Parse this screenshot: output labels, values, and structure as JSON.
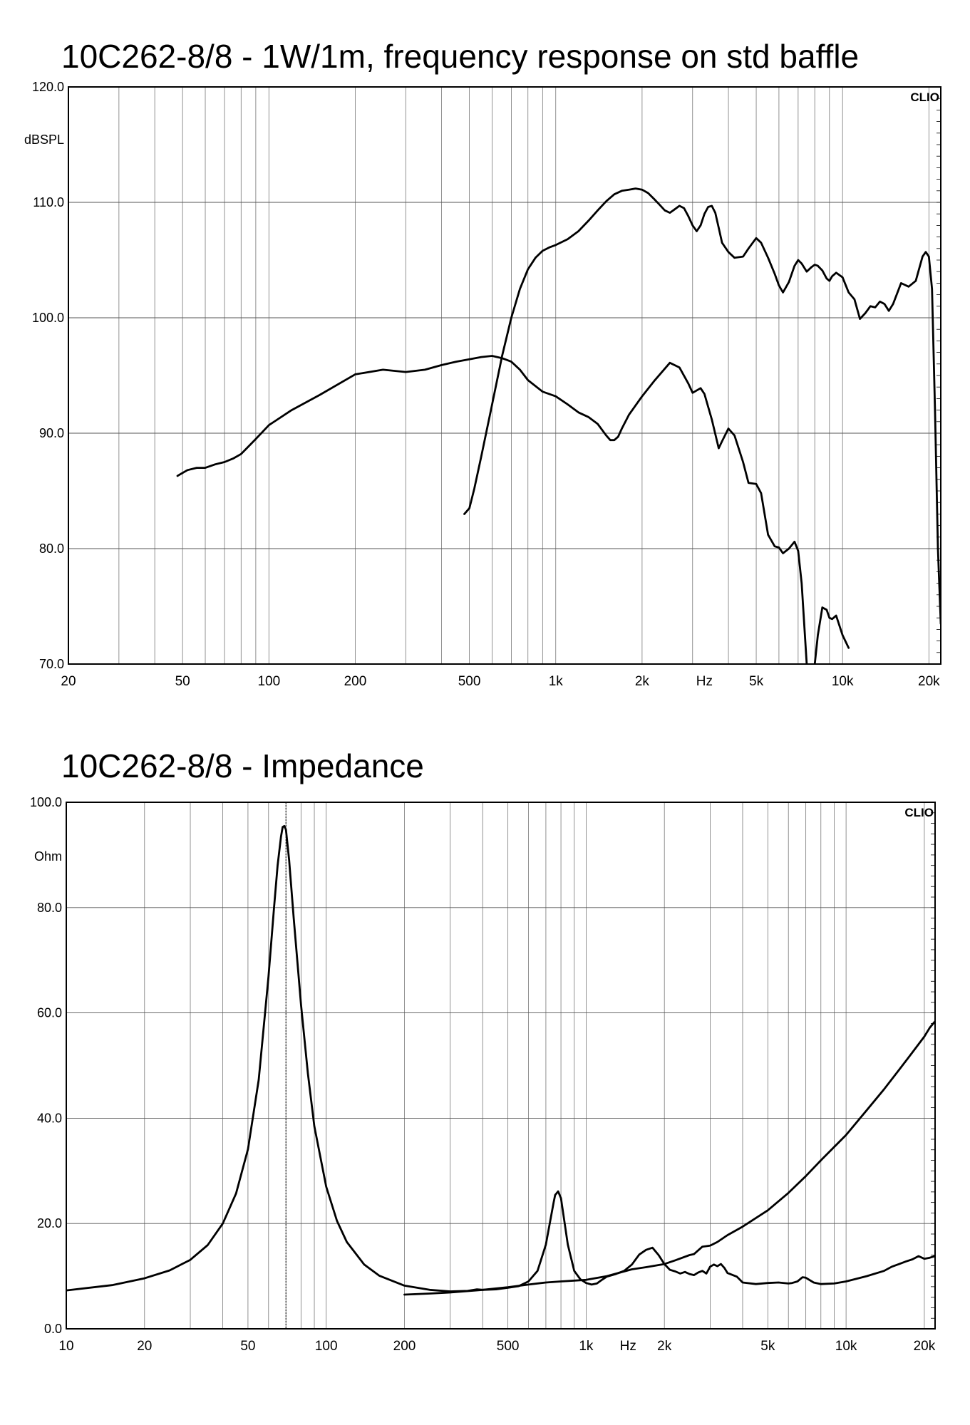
{
  "chart_data": [
    {
      "type": "line",
      "title": "10C262-8/8 - 1W/1m, frequency response on std baffle",
      "ylabel": "dBSPL",
      "xunit": "Hz",
      "watermark": "CLIO",
      "xscale": "log",
      "xlim": [
        20,
        22000
      ],
      "ylim": [
        70,
        120
      ],
      "grid": true,
      "yticks": [
        {
          "value": 70,
          "label": "70.0"
        },
        {
          "value": 80,
          "label": "80.0"
        },
        {
          "value": 90,
          "label": "90.0"
        },
        {
          "value": 100,
          "label": "100.0"
        },
        {
          "value": 110,
          "label": "110.0"
        },
        {
          "value": 120,
          "label": "120.0"
        }
      ],
      "xticks": [
        {
          "value": 20,
          "label": "20"
        },
        {
          "value": 50,
          "label": "50"
        },
        {
          "value": 100,
          "label": "100"
        },
        {
          "value": 200,
          "label": "200"
        },
        {
          "value": 500,
          "label": "500"
        },
        {
          "value": 1000,
          "label": "1k"
        },
        {
          "value": 2000,
          "label": "2k"
        },
        {
          "value": 5000,
          "label": "5k"
        },
        {
          "value": 10000,
          "label": "10k"
        },
        {
          "value": 20000,
          "label": "20k"
        }
      ],
      "series": [
        {
          "x": [
            48,
            52,
            56,
            60,
            65,
            70,
            75,
            80,
            90,
            100,
            120,
            150,
            200,
            250,
            300,
            350,
            400,
            450,
            500,
            550,
            600,
            650,
            700,
            750,
            800,
            900,
            1000,
            1100,
            1200,
            1300,
            1400,
            1500,
            1550,
            1600,
            1650,
            1700,
            1800,
            2000,
            2200,
            2500,
            2700,
            2900,
            3000,
            3200,
            3300,
            3500,
            3700,
            3800,
            4000,
            4200,
            4500,
            4700,
            5000,
            5200,
            5500,
            5800,
            6000,
            6200,
            6500,
            6800,
            7000,
            7200,
            7500,
            7800,
            8000,
            8200,
            8500,
            8800,
            9000,
            9200,
            9500,
            10000,
            10500
          ],
          "y": [
            86.3,
            86.8,
            87.0,
            87.0,
            87.3,
            87.5,
            87.8,
            88.2,
            89.5,
            90.7,
            92.0,
            93.3,
            95.1,
            95.5,
            95.3,
            95.5,
            95.9,
            96.2,
            96.4,
            96.6,
            96.7,
            96.5,
            96.2,
            95.5,
            94.6,
            93.6,
            93.2,
            92.5,
            91.8,
            91.4,
            90.8,
            89.8,
            89.4,
            89.4,
            89.7,
            90.4,
            91.6,
            93.2,
            94.5,
            96.1,
            95.7,
            94.3,
            93.5,
            93.9,
            93.4,
            91.2,
            88.7,
            89.3,
            90.4,
            89.8,
            87.5,
            85.7,
            85.6,
            84.8,
            81.2,
            80.2,
            80.1,
            79.6,
            80.0,
            80.6,
            79.8,
            77.0,
            70.0,
            68.0,
            70.0,
            72.5,
            74.9,
            74.7,
            74.0,
            73.9,
            74.2,
            72.5,
            71.4
          ]
        },
        {
          "x": [
            480,
            500,
            520,
            550,
            600,
            650,
            700,
            750,
            800,
            850,
            900,
            950,
            1000,
            1100,
            1200,
            1300,
            1400,
            1500,
            1600,
            1700,
            1800,
            1900,
            2000,
            2100,
            2200,
            2300,
            2400,
            2500,
            2600,
            2700,
            2800,
            2900,
            3000,
            3100,
            3200,
            3300,
            3400,
            3500,
            3600,
            3700,
            3800,
            4000,
            4200,
            4500,
            4700,
            5000,
            5200,
            5500,
            5800,
            6000,
            6200,
            6500,
            6800,
            7000,
            7200,
            7500,
            7800,
            8000,
            8200,
            8500,
            8800,
            9000,
            9200,
            9500,
            10000,
            10500,
            11000,
            11500,
            12000,
            12500,
            13000,
            13500,
            14000,
            14500,
            15000,
            16000,
            17000,
            18000,
            19000,
            19500,
            20000,
            20500,
            21000,
            21500,
            22000
          ],
          "y": [
            83.0,
            83.5,
            85.2,
            88.0,
            92.5,
            96.7,
            100.0,
            102.5,
            104.2,
            105.2,
            105.8,
            106.1,
            106.3,
            106.8,
            107.5,
            108.4,
            109.3,
            110.1,
            110.7,
            111.0,
            111.1,
            111.2,
            111.1,
            110.8,
            110.3,
            109.8,
            109.3,
            109.1,
            109.4,
            109.7,
            109.5,
            108.8,
            108.0,
            107.5,
            108.0,
            109.0,
            109.6,
            109.7,
            109.1,
            107.8,
            106.5,
            105.7,
            105.2,
            105.3,
            106.0,
            106.9,
            106.5,
            105.2,
            103.8,
            102.8,
            102.2,
            103.1,
            104.5,
            105.0,
            104.7,
            104.0,
            104.4,
            104.6,
            104.5,
            104.1,
            103.4,
            103.2,
            103.6,
            103.9,
            103.5,
            102.2,
            101.6,
            99.9,
            100.4,
            101.0,
            100.9,
            101.4,
            101.2,
            100.6,
            101.2,
            103.0,
            102.7,
            103.2,
            105.3,
            105.7,
            105.3,
            102.5,
            92.0,
            80.0,
            73.5
          ]
        }
      ]
    },
    {
      "type": "line",
      "title": "10C262-8/8 - Impedance",
      "ylabel": "Ohm",
      "xunit": "Hz",
      "watermark": "CLIO",
      "xscale": "log",
      "xlim": [
        10,
        22000
      ],
      "ylim": [
        0,
        100
      ],
      "grid": true,
      "marker_x": 70,
      "yticks": [
        {
          "value": 0,
          "label": "0.0"
        },
        {
          "value": 20,
          "label": "20.0"
        },
        {
          "value": 40,
          "label": "40.0"
        },
        {
          "value": 60,
          "label": "60.0"
        },
        {
          "value": 80,
          "label": "80.0"
        },
        {
          "value": 100,
          "label": "100.0"
        }
      ],
      "xticks": [
        {
          "value": 10,
          "label": "10"
        },
        {
          "value": 20,
          "label": "20"
        },
        {
          "value": 50,
          "label": "50"
        },
        {
          "value": 100,
          "label": "100"
        },
        {
          "value": 200,
          "label": "200"
        },
        {
          "value": 500,
          "label": "500"
        },
        {
          "value": 1000,
          "label": "1k"
        },
        {
          "value": 2000,
          "label": "2k"
        },
        {
          "value": 5000,
          "label": "5k"
        },
        {
          "value": 10000,
          "label": "10k"
        },
        {
          "value": 20000,
          "label": "20k"
        }
      ],
      "series": [
        {
          "x": [
            10,
            15,
            20,
            25,
            30,
            35,
            40,
            45,
            50,
            55,
            60,
            63,
            65,
            67,
            68,
            69,
            70,
            72,
            75,
            80,
            85,
            90,
            100,
            110,
            120,
            140,
            160,
            200,
            250,
            300,
            350,
            380,
            400,
            450,
            500,
            550,
            600,
            650,
            700,
            750,
            760,
            780,
            800,
            850,
            900,
            950,
            1000,
            1050,
            1100,
            1150,
            1200,
            1300,
            1400,
            1500,
            1600,
            1700,
            1800,
            1900,
            2000,
            2100,
            2200,
            2300,
            2400,
            2500,
            2600,
            2700,
            2800,
            2900,
            3000,
            3100,
            3200,
            3300,
            3400,
            3500,
            3800,
            4000,
            4500,
            5000,
            5500,
            6000,
            6200,
            6500,
            6800,
            7000,
            7500,
            8000,
            9000,
            10000,
            12000,
            14000,
            15000,
            16000,
            17000,
            18000,
            19000,
            20000,
            21000,
            22000
          ],
          "y": [
            7.3,
            8.3,
            9.6,
            11.1,
            13.1,
            15.9,
            20.0,
            25.7,
            34.1,
            47.3,
            67.0,
            80.0,
            88.0,
            93.5,
            95.3,
            95.5,
            94.8,
            89.0,
            78.0,
            61.5,
            48.5,
            38.5,
            27.0,
            20.5,
            16.5,
            12.2,
            10.1,
            8.2,
            7.4,
            7.1,
            7.2,
            7.5,
            7.4,
            7.5,
            7.8,
            8.1,
            9.0,
            11.0,
            16.0,
            24.0,
            25.4,
            26.1,
            24.8,
            16.0,
            11.0,
            9.4,
            8.7,
            8.4,
            8.6,
            9.3,
            9.9,
            10.4,
            11.0,
            12.2,
            14.1,
            15.0,
            15.4,
            14.0,
            12.3,
            11.2,
            10.9,
            10.5,
            10.8,
            10.4,
            10.2,
            10.7,
            11.0,
            10.5,
            11.8,
            12.2,
            11.9,
            12.3,
            11.6,
            10.6,
            9.9,
            8.8,
            8.5,
            8.7,
            8.8,
            8.6,
            8.7,
            9.0,
            9.8,
            9.7,
            8.8,
            8.5,
            8.6,
            9.0,
            10.0,
            11.0,
            11.8,
            12.3,
            12.8,
            13.2,
            13.8,
            13.3,
            13.5,
            13.8
          ]
        },
        {
          "x": [
            200,
            250,
            300,
            400,
            500,
            600,
            700,
            800,
            1000,
            1200,
            1500,
            1700,
            2000,
            2200,
            2500,
            2600,
            2800,
            3000,
            3200,
            3500,
            4000,
            5000,
            6000,
            7000,
            8000,
            10000,
            12000,
            14000,
            16000,
            18000,
            20000,
            21000,
            22000
          ],
          "y": [
            6.5,
            6.7,
            6.9,
            7.4,
            7.9,
            8.4,
            8.8,
            9.0,
            9.3,
            10.0,
            11.3,
            11.7,
            12.3,
            13.0,
            14.0,
            14.2,
            15.6,
            15.8,
            16.5,
            17.8,
            19.4,
            22.5,
            25.8,
            29.0,
            32.0,
            36.8,
            41.5,
            45.5,
            49.2,
            52.5,
            55.5,
            57.2,
            58.4
          ]
        }
      ]
    }
  ]
}
